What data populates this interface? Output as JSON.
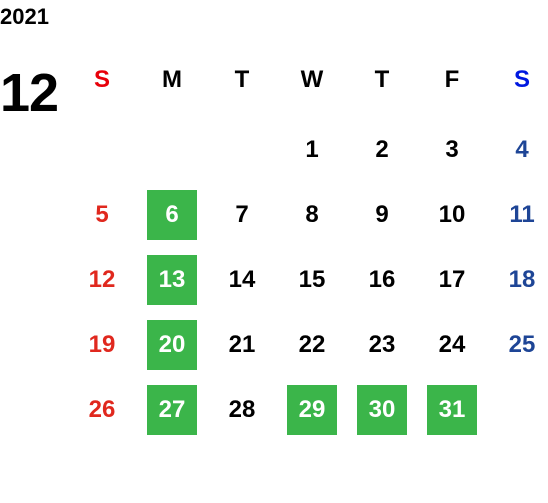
{
  "year": "2021",
  "month": "12",
  "weekdays": [
    "S",
    "M",
    "T",
    "W",
    "T",
    "F",
    "S"
  ],
  "weeks": [
    [
      null,
      null,
      null,
      {
        "day": 1
      },
      {
        "day": 2
      },
      {
        "day": 3
      },
      {
        "day": 4
      }
    ],
    [
      {
        "day": 5
      },
      {
        "day": 6,
        "marked": true
      },
      {
        "day": 7
      },
      {
        "day": 8
      },
      {
        "day": 9
      },
      {
        "day": 10
      },
      {
        "day": 11
      }
    ],
    [
      {
        "day": 12
      },
      {
        "day": 13,
        "marked": true
      },
      {
        "day": 14
      },
      {
        "day": 15
      },
      {
        "day": 16
      },
      {
        "day": 17
      },
      {
        "day": 18
      }
    ],
    [
      {
        "day": 19
      },
      {
        "day": 20,
        "marked": true
      },
      {
        "day": 21
      },
      {
        "day": 22
      },
      {
        "day": 23
      },
      {
        "day": 24
      },
      {
        "day": 25
      }
    ],
    [
      {
        "day": 26
      },
      {
        "day": 27,
        "marked": true
      },
      {
        "day": 28
      },
      {
        "day": 29,
        "marked": true
      },
      {
        "day": 30,
        "marked": true
      },
      {
        "day": 31,
        "marked": true
      },
      null
    ]
  ]
}
